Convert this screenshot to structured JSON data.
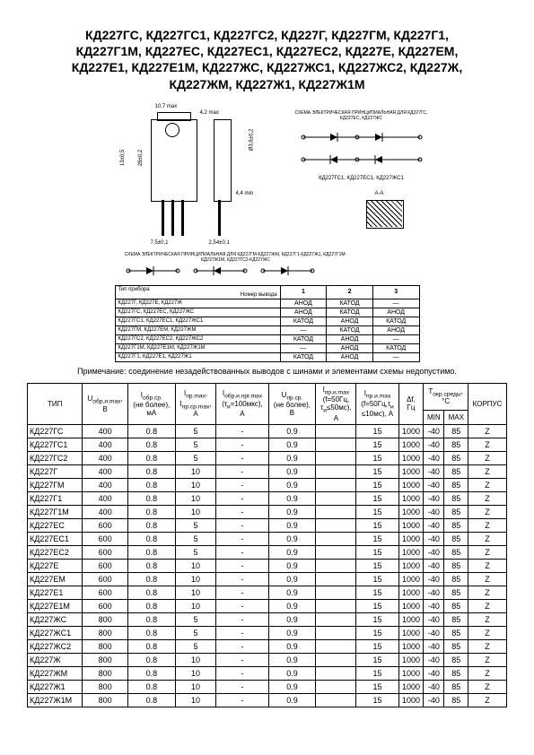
{
  "title_lines": [
    "КД227ГС, КД227ГС1, КД227ГС2, КД227Г, КД227ГМ, КД227Г1,",
    "КД227Г1М, КД227ЕС, КД227ЕС1, КД227ЕС2, КД227Е, КД227ЕМ,",
    "КД227Е1, КД227Е1М, КД227ЖС, КД227ЖС1, КД227ЖС2, КД227Ж,",
    "КД227ЖМ, КД227Ж1, КД227Ж1М"
  ],
  "diagram_labels": {
    "top_dim": "10,7 max",
    "side_dim": "13±0,5",
    "height_dim": "28±0,2",
    "tab_dim": "3,8±0,2",
    "width_dim": "7,5±0,1",
    "hole_dim": "Ø3,6±0,2",
    "pitch_dim": "2,54±0,1",
    "lead_dim": "4,4 min",
    "thickness": "4,2 max",
    "circuit1": "СХЕМА ЭЛЕКТРИЧЕСКАЯ ПРИНЦИПИАЛЬНАЯ ДЛЯ КД227ГС, КД227ЕС, КД227ЖС",
    "circuit2": "КД227ГС, КД227ЕС, КД227ЖС",
    "circuit3": "КД227ГС1, КД227ЕС1, КД227ЖС1",
    "circuit4": "А-А",
    "bottom_note": "СХЕМА ЭЛЕКТРИЧЕСКАЯ ПРИНЦИПИАЛЬНАЯ ДЛЯ КД227ГМ-КД227ЖМ, КД227Г1-КД227Ж1, КД227Г1М-КД227Ж1М, КД227ГС2-КД227ЖС"
  },
  "small_table": {
    "header_row": [
      "",
      "1",
      "2",
      "3"
    ],
    "type_header": "Тип прибора",
    "pin_header": "Номер вывода",
    "rows": [
      [
        "КД227Г, КД227Е, КД227Ж",
        "АНОД",
        "КАТОД",
        "—"
      ],
      [
        "КД227ГС, КД227ЕС, КД227ЖС",
        "АНОД",
        "КАТОД",
        "АНОД"
      ],
      [
        "КД227ГС1, КД227ЕС1, КД227ЖС1",
        "КАТОД",
        "АНОД",
        "КАТОД"
      ],
      [
        "КД227ГМ, КД227ЕМ, КД227ЖМ",
        "—",
        "КАТОД",
        "АНОД"
      ],
      [
        "КД227ГС2, КД227ЕС2, КД227ЖС2",
        "КАТОД",
        "АНОД",
        "—"
      ],
      [
        "КД227Г1М, КД227Е1М, КД227Ж1М",
        "—",
        "АНОД",
        "КАТОД"
      ],
      [
        "КД227Г1, КД227Е1, КД227Ж1",
        "КАТОД",
        "АНОД",
        "—"
      ]
    ]
  },
  "note": "Примечание: соединение незадействованных выводов с шинами и элементами схемы недопустимо.",
  "main_table": {
    "headers": {
      "type": "ТИП",
      "h1": "U<sub>обр.и.max</sub>,<br>В",
      "h2": "I<sub>обр.ср.</sub><br>(не более),<br>мА",
      "h3": "I<sub>пр.max</sub>,<br>I<sub>пр.ср.max</sub>,<br>А",
      "h4": "I<sub>обр.и.прг.max</sub><br>(τ<sub>и</sub>=100мкс),<br>А",
      "h5": "U<sub>пр.ср.</sub><br>(не более),<br>В",
      "h6": "I<sub>пр.и.max</sub><br>(f=50Гц,<br>τ<sub>и</sub>≤50мс),<br>А",
      "h7": "I<sub>пр.и.max</sub><br>(f=50Гц,τ<sub>и</sub><br>≤10мс), А",
      "h8": "Δf,<br>Гц",
      "h9": "T<sub>окр.среды</sub>,<br>°C",
      "h9a": "MIN",
      "h9b": "MAX",
      "h10": "КОРПУС"
    },
    "rows": [
      [
        "КД227ГС",
        "400",
        "0.8",
        "5",
        "-",
        "0.9",
        "",
        "15",
        "1000",
        "-40",
        "85",
        "Z"
      ],
      [
        "КД227ГС1",
        "400",
        "0.8",
        "5",
        "-",
        "0.9",
        "",
        "15",
        "1000",
        "-40",
        "85",
        "Z"
      ],
      [
        "КД227ГС2",
        "400",
        "0.8",
        "5",
        "-",
        "0.9",
        "",
        "15",
        "1000",
        "-40",
        "85",
        "Z"
      ],
      [
        "КД227Г",
        "400",
        "0.8",
        "10",
        "-",
        "0.9",
        "",
        "15",
        "1000",
        "-40",
        "85",
        "Z"
      ],
      [
        "КД227ГМ",
        "400",
        "0.8",
        "10",
        "-",
        "0.9",
        "",
        "15",
        "1000",
        "-40",
        "85",
        "Z"
      ],
      [
        "КД227Г1",
        "400",
        "0.8",
        "10",
        "-",
        "0.9",
        "",
        "15",
        "1000",
        "-40",
        "85",
        "Z"
      ],
      [
        "КД227Г1М",
        "400",
        "0.8",
        "10",
        "-",
        "0.9",
        "",
        "15",
        "1000",
        "-40",
        "85",
        "Z"
      ],
      [
        "КД227ЕС",
        "600",
        "0.8",
        "5",
        "-",
        "0.9",
        "",
        "15",
        "1000",
        "-40",
        "85",
        "Z"
      ],
      [
        "КД227ЕС1",
        "600",
        "0.8",
        "5",
        "-",
        "0.9",
        "",
        "15",
        "1000",
        "-40",
        "85",
        "Z"
      ],
      [
        "КД227ЕС2",
        "600",
        "0.8",
        "5",
        "-",
        "0.9",
        "",
        "15",
        "1000",
        "-40",
        "85",
        "Z"
      ],
      [
        "КД227Е",
        "600",
        "0.8",
        "10",
        "-",
        "0.9",
        "",
        "15",
        "1000",
        "-40",
        "85",
        "Z"
      ],
      [
        "КД227ЕМ",
        "600",
        "0.8",
        "10",
        "-",
        "0.9",
        "",
        "15",
        "1000",
        "-40",
        "85",
        "Z"
      ],
      [
        "КД227Е1",
        "600",
        "0.8",
        "10",
        "-",
        "0.9",
        "",
        "15",
        "1000",
        "-40",
        "85",
        "Z"
      ],
      [
        "КД227Е1М",
        "600",
        "0.8",
        "10",
        "-",
        "0.9",
        "",
        "15",
        "1000",
        "-40",
        "85",
        "Z"
      ],
      [
        "КД227ЖС",
        "800",
        "0.8",
        "5",
        "-",
        "0.9",
        "",
        "15",
        "1000",
        "-40",
        "85",
        "Z"
      ],
      [
        "КД227ЖС1",
        "800",
        "0.8",
        "5",
        "-",
        "0.9",
        "",
        "15",
        "1000",
        "-40",
        "85",
        "Z"
      ],
      [
        "КД227ЖС2",
        "800",
        "0.8",
        "5",
        "-",
        "0.9",
        "",
        "15",
        "1000",
        "-40",
        "85",
        "Z"
      ],
      [
        "КД227Ж",
        "800",
        "0.8",
        "10",
        "-",
        "0.9",
        "",
        "15",
        "1000",
        "-40",
        "85",
        "Z"
      ],
      [
        "КД227ЖМ",
        "800",
        "0.8",
        "10",
        "-",
        "0.9",
        "",
        "15",
        "1000",
        "-40",
        "85",
        "Z"
      ],
      [
        "КД227Ж1",
        "800",
        "0.8",
        "10",
        "-",
        "0.9",
        "",
        "15",
        "1000",
        "-40",
        "85",
        "Z"
      ],
      [
        "КД227Ж1М",
        "800",
        "0.8",
        "10",
        "-",
        "0.9",
        "",
        "15",
        "1000",
        "-40",
        "85",
        "Z"
      ]
    ]
  }
}
